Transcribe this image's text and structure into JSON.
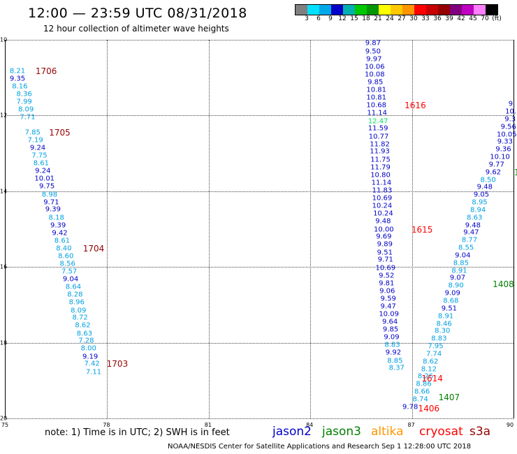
{
  "title": "12:00 — 23:59 UTC 08/31/2018",
  "subtitle": "12 hour collection of altimeter wave heights",
  "scale": {
    "labels": [
      "3",
      "6",
      "9",
      "12",
      "15",
      "18",
      "21",
      "24",
      "27",
      "30",
      "33",
      "36",
      "39",
      "42",
      "45",
      "70",
      "(ft)"
    ],
    "colors": [
      "#808080",
      "#00e0ff",
      "#00a8e8",
      "#0000c8",
      "#00b0b0",
      "#00c800",
      "#009600",
      "#ffff00",
      "#ffc800",
      "#ff9600",
      "#ff0000",
      "#c80000",
      "#960000",
      "#800080",
      "#c000c0",
      "#ff80ff",
      "#000000"
    ]
  },
  "colors": {
    "jason2": "#0000c8",
    "jason3": "#008000",
    "altika": "#ff9600",
    "cryosat": "#ff0000",
    "s3a": "#960000",
    "light": "#00a0e0",
    "bright": "#00e060"
  },
  "axes": {
    "lat_labels": [
      "10",
      "12",
      "14",
      "16",
      "18",
      "20"
    ],
    "lon_labels": [
      "75",
      "78",
      "81",
      "84",
      "87",
      "90"
    ],
    "lat_range": [
      10,
      20
    ],
    "lon_range": [
      75,
      90
    ]
  },
  "tracks": [
    {
      "id": "s3a-west",
      "points": [
        [
          "8.21",
          "light",
          75.35,
          10.83
        ],
        [
          "9.35",
          "jason2",
          75.35,
          11.03
        ],
        [
          "8.16",
          "light",
          75.42,
          11.24
        ],
        [
          "8.36",
          "light",
          75.55,
          11.44
        ],
        [
          "7.99",
          "light",
          75.55,
          11.64
        ],
        [
          "8.09",
          "light",
          75.6,
          11.85
        ],
        [
          "7.71",
          "light",
          75.65,
          12.05
        ],
        [
          "7.85",
          "light",
          75.8,
          12.45
        ],
        [
          "7.19",
          "light",
          75.88,
          12.66
        ],
        [
          "9.24",
          "jason2",
          75.95,
          12.86
        ],
        [
          "7.75",
          "light",
          76.0,
          13.07
        ],
        [
          "8.61",
          "light",
          76.05,
          13.27
        ],
        [
          "9.24",
          "jason2",
          76.1,
          13.47
        ],
        [
          "10.01",
          "jason2",
          76.15,
          13.68
        ],
        [
          "9.75",
          "jason2",
          76.22,
          13.88
        ],
        [
          "8.98",
          "light",
          76.3,
          14.09
        ],
        [
          "9.71",
          "jason2",
          76.35,
          14.29
        ],
        [
          "9.39",
          "jason2",
          76.4,
          14.49
        ],
        [
          "8.18",
          "light",
          76.5,
          14.7
        ],
        [
          "9.39",
          "jason2",
          76.55,
          14.9
        ],
        [
          "9.42",
          "jason2",
          76.6,
          15.11
        ],
        [
          "8.61",
          "light",
          76.67,
          15.31
        ],
        [
          "8.40",
          "light",
          76.72,
          15.51
        ],
        [
          "8.60",
          "light",
          76.78,
          15.72
        ],
        [
          "8.56",
          "light",
          76.83,
          15.92
        ],
        [
          "7.57",
          "light",
          76.88,
          16.13
        ],
        [
          "9.04",
          "jason2",
          76.92,
          16.33
        ],
        [
          "8.64",
          "light",
          77.0,
          16.53
        ],
        [
          "8.28",
          "light",
          77.05,
          16.74
        ],
        [
          "8.96",
          "light",
          77.1,
          16.94
        ],
        [
          "8.09",
          "light",
          77.15,
          17.15
        ],
        [
          "8.72",
          "light",
          77.2,
          17.35
        ],
        [
          "8.62",
          "light",
          77.28,
          17.55
        ],
        [
          "8.63",
          "light",
          77.33,
          17.76
        ],
        [
          "7.28",
          "light",
          77.38,
          17.96
        ],
        [
          "8.00",
          "light",
          77.45,
          18.16
        ],
        [
          "9.19",
          "jason2",
          77.5,
          18.37
        ],
        [
          "7.42",
          "light",
          77.55,
          18.57
        ],
        [
          "7.11",
          "light",
          77.6,
          18.78
        ]
      ]
    },
    {
      "id": "cryosat-center",
      "points": [
        [
          "9.87",
          "jason2",
          85.85,
          10.1
        ],
        [
          "9.50",
          "jason2",
          85.85,
          10.31
        ],
        [
          "9.97",
          "jason2",
          85.88,
          10.51
        ],
        [
          "10.06",
          "jason2",
          85.9,
          10.72
        ],
        [
          "10.08",
          "jason2",
          85.9,
          10.92
        ],
        [
          "9.85",
          "jason2",
          85.92,
          11.12
        ],
        [
          "10.81",
          "jason2",
          85.95,
          11.33
        ],
        [
          "10.81",
          "jason2",
          85.95,
          11.53
        ],
        [
          "10.68",
          "jason2",
          85.95,
          11.74
        ],
        [
          "11.14",
          "jason2",
          85.97,
          11.94
        ],
        [
          "12.47",
          "bright",
          86.0,
          12.15
        ],
        [
          "11.59",
          "jason2",
          86.0,
          12.35
        ],
        [
          "10.77",
          "jason2",
          86.02,
          12.56
        ],
        [
          "11.82",
          "jason2",
          86.05,
          12.76
        ],
        [
          "11.93",
          "jason2",
          86.05,
          12.96
        ],
        [
          "11.75",
          "jason2",
          86.07,
          13.17
        ],
        [
          "11.79",
          "jason2",
          86.07,
          13.37
        ],
        [
          "10.80",
          "jason2",
          86.07,
          13.58
        ],
        [
          "11.14",
          "jason2",
          86.1,
          13.78
        ],
        [
          "11.83",
          "jason2",
          86.12,
          13.99
        ],
        [
          "10.69",
          "jason2",
          86.12,
          14.19
        ],
        [
          "10.24",
          "jason2",
          86.12,
          14.39
        ],
        [
          "10.24",
          "jason2",
          86.15,
          14.6
        ],
        [
          "9.48",
          "jason2",
          86.15,
          14.8
        ],
        [
          "10.00",
          "jason2",
          86.17,
          15.01
        ],
        [
          "9.69",
          "jason2",
          86.17,
          15.21
        ],
        [
          "9.89",
          "jason2",
          86.2,
          15.41
        ],
        [
          "9.51",
          "jason2",
          86.2,
          15.62
        ],
        [
          "9.71",
          "jason2",
          86.22,
          15.82
        ],
        [
          "10.69",
          "jason2",
          86.22,
          16.03
        ],
        [
          "9.52",
          "jason2",
          86.25,
          16.23
        ],
        [
          "9.81",
          "jason2",
          86.25,
          16.44
        ],
        [
          "9.06",
          "jason2",
          86.27,
          16.64
        ],
        [
          "9.59",
          "jason2",
          86.3,
          16.84
        ],
        [
          "9.47",
          "jason2",
          86.3,
          17.05
        ],
        [
          "10.09",
          "jason2",
          86.32,
          17.25
        ],
        [
          "9.64",
          "jason2",
          86.35,
          17.46
        ],
        [
          "9.85",
          "jason2",
          86.37,
          17.66
        ],
        [
          "9.09",
          "jason2",
          86.4,
          17.86
        ],
        [
          "8.83",
          "light",
          86.42,
          18.07
        ],
        [
          "9.92",
          "jason2",
          86.45,
          18.27
        ],
        [
          "8.85",
          "light",
          86.5,
          18.48
        ],
        [
          "8.37",
          "light",
          86.55,
          18.68
        ]
      ]
    },
    {
      "id": "jason3-east",
      "points": [
        [
          "9.",
          "jason2",
          89.95,
          11.7
        ],
        [
          "10.",
          "jason2",
          89.92,
          11.9
        ],
        [
          "9.3",
          "jason2",
          89.9,
          12.1
        ],
        [
          "9.56",
          "jason2",
          89.85,
          12.3
        ],
        [
          "10.05",
          "jason2",
          89.8,
          12.5
        ],
        [
          "9.33",
          "jason2",
          89.75,
          12.7
        ],
        [
          "9.36",
          "jason2",
          89.7,
          12.9
        ],
        [
          "10.10",
          "jason2",
          89.6,
          13.1
        ],
        [
          "9.77",
          "jason2",
          89.5,
          13.3
        ],
        [
          "9.62",
          "jason2",
          89.4,
          13.5
        ],
        [
          "8.50",
          "light",
          89.25,
          13.7
        ],
        [
          "9.48",
          "jason2",
          89.15,
          13.9
        ],
        [
          "9.05",
          "jason2",
          89.05,
          14.1
        ],
        [
          "8.95",
          "light",
          89.0,
          14.3
        ],
        [
          "8.94",
          "light",
          88.95,
          14.5
        ],
        [
          "8.63",
          "light",
          88.85,
          14.7
        ],
        [
          "9.48",
          "jason2",
          88.8,
          14.9
        ],
        [
          "9.47",
          "jason2",
          88.75,
          15.1
        ],
        [
          "8.77",
          "light",
          88.7,
          15.3
        ],
        [
          "8.55",
          "light",
          88.6,
          15.5
        ],
        [
          "9.04",
          "jason2",
          88.5,
          15.7
        ],
        [
          "8.85",
          "light",
          88.45,
          15.9
        ],
        [
          "8.91",
          "light",
          88.4,
          16.1
        ],
        [
          "9.07",
          "jason2",
          88.35,
          16.3
        ],
        [
          "8.90",
          "light",
          88.3,
          16.5
        ],
        [
          "9.09",
          "jason2",
          88.2,
          16.7
        ],
        [
          "8.68",
          "light",
          88.15,
          16.9
        ],
        [
          "9.51",
          "jason2",
          88.1,
          17.1
        ],
        [
          "8.91",
          "light",
          88.0,
          17.3
        ],
        [
          "8.46",
          "light",
          87.95,
          17.5
        ],
        [
          "8.30",
          "light",
          87.9,
          17.7
        ],
        [
          "8.83",
          "light",
          87.8,
          17.9
        ],
        [
          "7.95",
          "light",
          87.7,
          18.1
        ],
        [
          "7.74",
          "light",
          87.65,
          18.3
        ],
        [
          "8.62",
          "light",
          87.55,
          18.5
        ],
        [
          "8.12",
          "light",
          87.5,
          18.7
        ],
        [
          "8.26",
          "light",
          87.4,
          18.9
        ],
        [
          "8.86",
          "light",
          87.35,
          19.1
        ],
        [
          "8.66",
          "light",
          87.3,
          19.3
        ],
        [
          "8.74",
          "light",
          87.25,
          19.5
        ],
        [
          "9.78",
          "jason2",
          86.95,
          19.7
        ]
      ]
    }
  ],
  "time_labels": [
    [
      "1706",
      "s3a",
      76.2,
      10.83
    ],
    [
      "1705",
      "s3a",
      76.6,
      12.45
    ],
    [
      "1704",
      "s3a",
      77.6,
      15.51
    ],
    [
      "1703",
      "s3a",
      78.3,
      18.57
    ],
    [
      "1616",
      "cryosat",
      87.1,
      11.74
    ],
    [
      "1615",
      "cryosat",
      87.3,
      15.01
    ],
    [
      "1614",
      "cryosat",
      87.6,
      18.95
    ],
    [
      "1407",
      "jason3",
      88.1,
      19.45
    ],
    [
      "1406",
      "cryosat",
      87.5,
      19.75
    ],
    [
      "1408",
      "jason3",
      89.7,
      16.45
    ],
    [
      "1",
      "jason3",
      90.1,
      13.5
    ]
  ],
  "note": "note:  1) Time is in UTC;  2) SWH is in feet",
  "legend": [
    {
      "name": "jason2",
      "color_key": "jason2"
    },
    {
      "name": "jason3",
      "color_key": "jason3"
    },
    {
      "name": "altika",
      "color_key": "altika"
    },
    {
      "name": "cryosat",
      "color_key": "cryosat"
    },
    {
      "name": "s3a",
      "color_key": "s3a"
    }
  ],
  "credit": "NOAA/NESDIS Center for Satellite Applications and Research     Sep  1 12:28:00 UTC 2018"
}
